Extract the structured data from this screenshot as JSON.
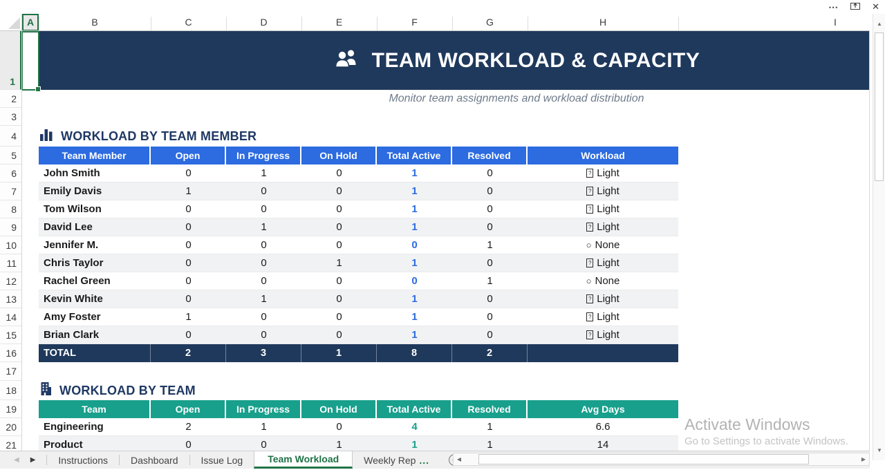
{
  "titlebar": {
    "icons": [
      "more-options-icon",
      "pop-out-icon",
      "close-icon"
    ]
  },
  "grid": {
    "column_labels": [
      "A",
      "B",
      "C",
      "D",
      "E",
      "F",
      "G",
      "H",
      "I"
    ],
    "row_labels": [
      "1",
      "2",
      "3",
      "4",
      "5",
      "6",
      "7",
      "8",
      "9",
      "10",
      "11",
      "12",
      "13",
      "14",
      "15",
      "16",
      "17",
      "18",
      "19",
      "20",
      "21"
    ],
    "selected_cell": "A1"
  },
  "banner": {
    "icon": "people-icon",
    "title": "TEAM WORKLOAD & CAPACITY"
  },
  "subtitle": {
    "text": "Monitor team assignments and workload distribution"
  },
  "member_section": {
    "icon": "bar-chart-icon",
    "title": "WORKLOAD BY TEAM MEMBER",
    "headers": [
      "Team Member",
      "Open",
      "In Progress",
      "On Hold",
      "Total Active",
      "Resolved",
      "Workload"
    ],
    "rows": [
      {
        "name": "John Smith",
        "open": 0,
        "in_progress": 1,
        "on_hold": 0,
        "total_active": 1,
        "resolved": 0,
        "workload": {
          "icon": "boxed-glyph-icon",
          "label": "Light"
        }
      },
      {
        "name": "Emily Davis",
        "open": 1,
        "in_progress": 0,
        "on_hold": 0,
        "total_active": 1,
        "resolved": 0,
        "workload": {
          "icon": "boxed-glyph-icon",
          "label": "Light"
        }
      },
      {
        "name": "Tom Wilson",
        "open": 0,
        "in_progress": 0,
        "on_hold": 0,
        "total_active": 1,
        "resolved": 0,
        "workload": {
          "icon": "boxed-glyph-icon",
          "label": "Light"
        }
      },
      {
        "name": "David Lee",
        "open": 0,
        "in_progress": 1,
        "on_hold": 0,
        "total_active": 1,
        "resolved": 0,
        "workload": {
          "icon": "boxed-glyph-icon",
          "label": "Light"
        }
      },
      {
        "name": "Jennifer M.",
        "open": 0,
        "in_progress": 0,
        "on_hold": 0,
        "total_active": 0,
        "resolved": 1,
        "workload": {
          "icon": "circle-icon",
          "label": "None"
        }
      },
      {
        "name": "Chris Taylor",
        "open": 0,
        "in_progress": 0,
        "on_hold": 1,
        "total_active": 1,
        "resolved": 0,
        "workload": {
          "icon": "boxed-glyph-icon",
          "label": "Light"
        }
      },
      {
        "name": "Rachel Green",
        "open": 0,
        "in_progress": 0,
        "on_hold": 0,
        "total_active": 0,
        "resolved": 1,
        "workload": {
          "icon": "circle-icon",
          "label": "None"
        }
      },
      {
        "name": "Kevin White",
        "open": 0,
        "in_progress": 1,
        "on_hold": 0,
        "total_active": 1,
        "resolved": 0,
        "workload": {
          "icon": "boxed-glyph-icon",
          "label": "Light"
        }
      },
      {
        "name": "Amy Foster",
        "open": 1,
        "in_progress": 0,
        "on_hold": 0,
        "total_active": 1,
        "resolved": 0,
        "workload": {
          "icon": "boxed-glyph-icon",
          "label": "Light"
        }
      },
      {
        "name": "Brian Clark",
        "open": 0,
        "in_progress": 0,
        "on_hold": 0,
        "total_active": 1,
        "resolved": 0,
        "workload": {
          "icon": "boxed-glyph-icon",
          "label": "Light"
        }
      }
    ],
    "total": {
      "label": "TOTAL",
      "open": 2,
      "in_progress": 3,
      "on_hold": 1,
      "total_active": 8,
      "resolved": 2
    }
  },
  "team_section": {
    "icon": "building-icon",
    "title": "WORKLOAD BY TEAM",
    "headers": [
      "Team",
      "Open",
      "In Progress",
      "On Hold",
      "Total Active",
      "Resolved",
      "Avg Days"
    ],
    "rows": [
      {
        "name": "Engineering",
        "open": 2,
        "in_progress": 1,
        "on_hold": 0,
        "total_active": 4,
        "resolved": 1,
        "avg_days": "6.6"
      },
      {
        "name": "Product",
        "open": 0,
        "in_progress": 0,
        "on_hold": 1,
        "total_active": 1,
        "resolved": 1,
        "avg_days": "14"
      }
    ]
  },
  "sheet_tabs": {
    "items": [
      {
        "label": "Instructions",
        "active": false
      },
      {
        "label": "Dashboard",
        "active": false
      },
      {
        "label": "Issue Log",
        "active": false
      },
      {
        "label": "Team Workload",
        "active": true
      },
      {
        "label": "Weekly Rep",
        "active": false,
        "suffix": "..."
      }
    ]
  },
  "watermark": {
    "line1": "Activate Windows",
    "line2": "Go to Settings to activate Windows."
  },
  "colors": {
    "banner_navy": "#1F395C",
    "member_header_blue": "#2C6BE0",
    "team_header_teal": "#18A08C",
    "accent_green": "#217346",
    "row_banding": "#F1F2F4",
    "section_text_navy": "#1F3864"
  }
}
